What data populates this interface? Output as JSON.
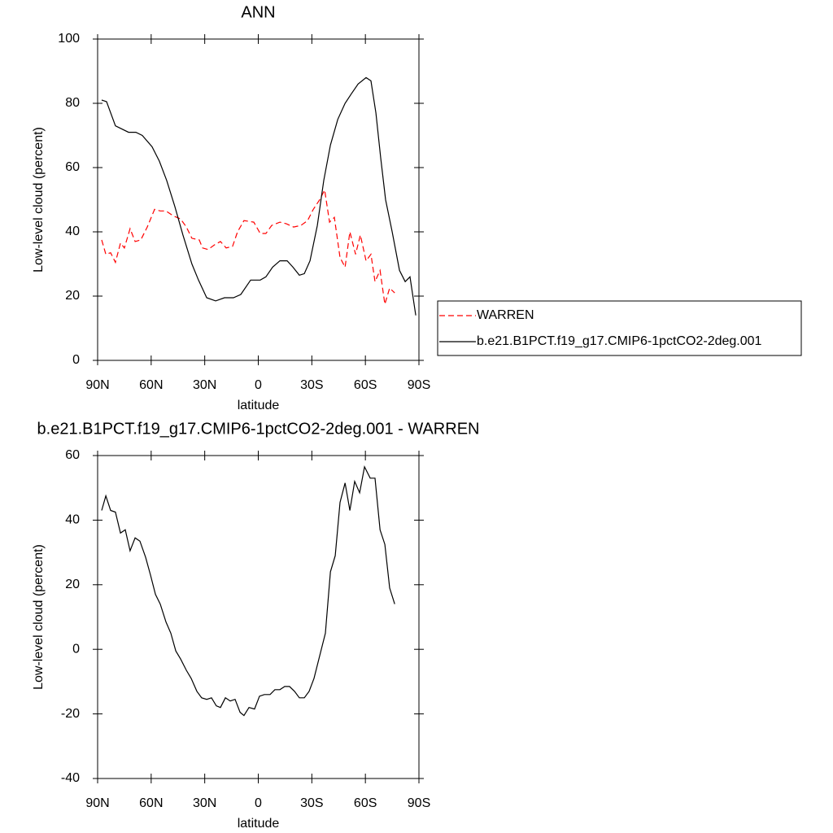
{
  "chart_data": [
    {
      "type": "line",
      "title": "ANN",
      "xlabel": "latitude",
      "ylabel": "Low-level cloud (percent)",
      "xlim": [
        90,
        -90
      ],
      "xticks": [
        {
          "value": 90,
          "label": "90N"
        },
        {
          "value": 60,
          "label": "60N"
        },
        {
          "value": 30,
          "label": "30N"
        },
        0,
        {
          "value": -30,
          "label": "30S"
        },
        {
          "value": -60,
          "label": "60S"
        },
        {
          "value": -90,
          "label": "90S"
        }
      ],
      "ylim": [
        0,
        100
      ],
      "yticks": [
        0,
        20,
        40,
        60,
        80,
        100
      ],
      "legend": "right",
      "series": [
        {
          "name": "WARREN",
          "color": "#ff0000",
          "dashed": true,
          "x": [
            87.7,
            85.4,
            82.7,
            80,
            77.2,
            75,
            71.8,
            69,
            65.8,
            62.2,
            58.1,
            54.9,
            51.7,
            47.6,
            43.5,
            40.3,
            37.2,
            33.1,
            31.2,
            28.1,
            24.4,
            21.2,
            18,
            14.4,
            11.6,
            8,
            2.5,
            -1.1,
            -4.3,
            -7.5,
            -12.1,
            -15.7,
            -19.8,
            -23.9,
            -27.6,
            -30.8,
            -34.4,
            -37.2,
            -39.9,
            -42.6,
            -45.8,
            -48.6,
            -51.3,
            -54.5,
            -57.2,
            -60.4,
            -63.1,
            -65.4,
            -68.2,
            -70.9,
            -73.6,
            -76.4
          ],
          "values": [
            37.5,
            33,
            33.5,
            30.5,
            36.5,
            35,
            41,
            37,
            37.5,
            41.5,
            47,
            46.5,
            46.5,
            45,
            44,
            41.5,
            38,
            37.5,
            35,
            34.5,
            36,
            37,
            35,
            35.5,
            40,
            43.5,
            43,
            39.5,
            39.5,
            42,
            43,
            42.5,
            41.5,
            42,
            43.5,
            47,
            50,
            53,
            43,
            44.5,
            32,
            29,
            40,
            33,
            39,
            31,
            33,
            24.5,
            28,
            17.5,
            22.5,
            21
          ]
        },
        {
          "name": "b.e21.B1PCT.f19_g17.CMIP6-1pctCO2-2deg.001",
          "color": "#000000",
          "dashed": false,
          "x": [
            87.7,
            85,
            80,
            72.7,
            68.6,
            65,
            59.5,
            55.4,
            51.3,
            46.8,
            42.2,
            37.2,
            33.5,
            28.9,
            23.9,
            18.9,
            13.9,
            9.8,
            4.3,
            -1.1,
            -4.3,
            -8,
            -12.1,
            -16.2,
            -19.4,
            -23,
            -25.8,
            -29,
            -33.1,
            -36.7,
            -40.4,
            -44.5,
            -48.6,
            -52.2,
            -55.9,
            -60.4,
            -63.1,
            -65.9,
            -68.6,
            -71.3,
            -75,
            -79.1,
            -82.3,
            -85,
            -88.2
          ],
          "values": [
            81,
            80.5,
            73,
            71,
            71,
            70,
            66.5,
            62,
            56,
            48,
            39,
            30,
            25,
            19.5,
            18.5,
            19.5,
            19.5,
            20.5,
            25,
            25,
            26,
            29,
            31,
            31,
            29,
            26.5,
            27,
            31,
            42,
            56,
            67,
            75,
            80,
            83,
            86,
            88,
            87,
            77,
            63,
            50,
            40,
            28,
            24.5,
            26,
            14
          ]
        }
      ]
    },
    {
      "type": "line",
      "title": "b.e21.B1PCT.f19_g17.CMIP6-1pctCO2-2deg.001 - WARREN",
      "xlabel": "latitude",
      "ylabel": "Low-level cloud (percent)",
      "xlim": [
        90,
        -90
      ],
      "xticks": [
        {
          "value": 90,
          "label": "90N"
        },
        {
          "value": 60,
          "label": "60N"
        },
        {
          "value": 30,
          "label": "30N"
        },
        0,
        {
          "value": -30,
          "label": "30S"
        },
        {
          "value": -60,
          "label": "60S"
        },
        {
          "value": -90,
          "label": "90S"
        }
      ],
      "ylim": [
        -40,
        60
      ],
      "yticks": [
        -40,
        -20,
        0,
        20,
        40,
        60
      ],
      "color": "#000000",
      "x": [
        87.7,
        85.4,
        82.7,
        80,
        77.2,
        74.5,
        71.8,
        69,
        66.3,
        63.1,
        60.4,
        57.6,
        54.9,
        51.7,
        49,
        46.2,
        43.5,
        40.3,
        37.6,
        34.4,
        31.7,
        28.9,
        26.2,
        23.5,
        21.2,
        18.4,
        15.7,
        13,
        10.2,
        8,
        5.2,
        2.1,
        -0.7,
        -3.4,
        -6.6,
        -9.3,
        -12.1,
        -14.8,
        -17.5,
        -20.3,
        -23,
        -25.8,
        -28.5,
        -31.2,
        -34.4,
        -37.6,
        -40.4,
        -43.1,
        -45.8,
        -48.6,
        -51.3,
        -54,
        -56.8,
        -59.5,
        -62.7,
        -65.4,
        -68.2,
        -70.9,
        -73.6,
        -76.4
      ],
      "values": [
        43,
        47.5,
        43,
        42.5,
        36,
        37,
        30.5,
        34.5,
        33.5,
        28.5,
        23,
        17,
        14,
        8.5,
        5,
        -0.5,
        -3,
        -6.5,
        -9,
        -13,
        -15,
        -15.5,
        -15,
        -17.5,
        -18,
        -15,
        -16,
        -15.5,
        -19.5,
        -20.5,
        -18,
        -18.5,
        -14.5,
        -14,
        -14,
        -12.5,
        -12.5,
        -11.5,
        -11.5,
        -13,
        -15,
        -15,
        -13,
        -9,
        -2,
        5,
        24,
        29,
        45.5,
        51.5,
        43,
        52,
        48.5,
        56.5,
        53,
        53,
        37,
        32.5,
        19,
        14
      ]
    }
  ]
}
